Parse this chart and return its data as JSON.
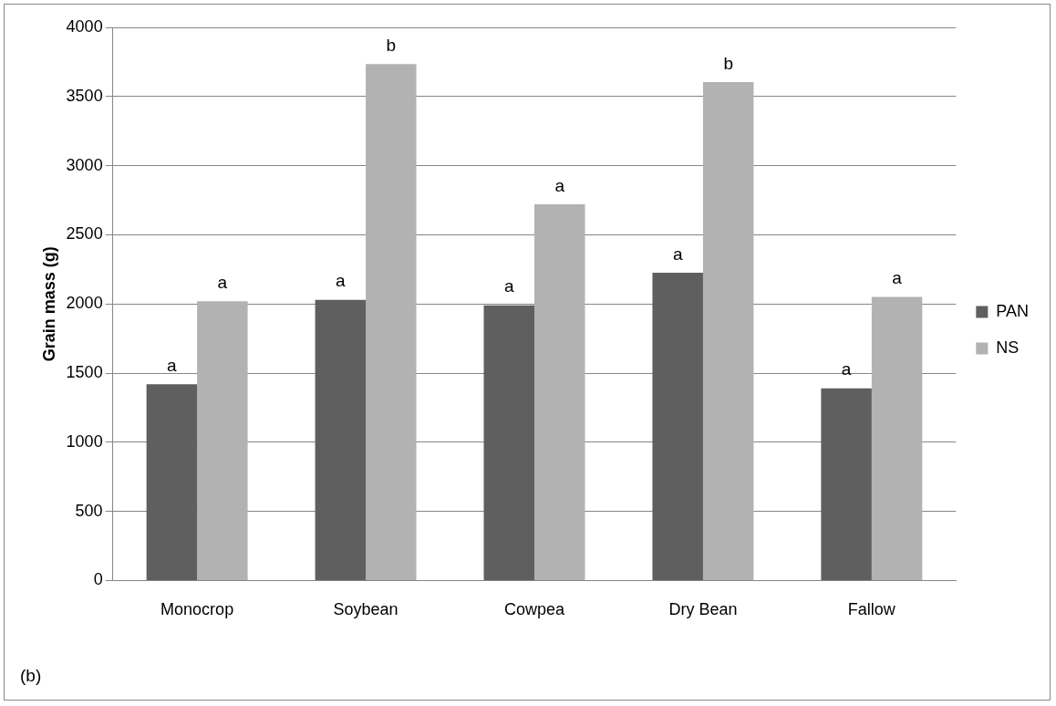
{
  "chart_data": {
    "type": "bar",
    "ylabel": "Grain mass (g)",
    "categories": [
      "Monocrop",
      "Soybean",
      "Cowpea",
      "Dry Bean",
      "Fallow"
    ],
    "series": [
      {
        "name": "PAN",
        "color": "#5f5f5f",
        "values": [
          1420,
          2030,
          1990,
          2225,
          1390
        ]
      },
      {
        "name": "NS",
        "color": "#b2b2b2",
        "values": [
          2020,
          3735,
          2720,
          3605,
          2050
        ]
      }
    ],
    "ylim": [
      0,
      4000
    ],
    "yticks": [
      0,
      500,
      1000,
      1500,
      2000,
      2500,
      3000,
      3500,
      4000
    ],
    "grid": "y",
    "legend": "right",
    "annotations": [
      {
        "text": "a",
        "x": "Monocrop",
        "y": 1420
      },
      {
        "text": "a",
        "x": "Monocrop",
        "y": 2020
      },
      {
        "text": "a",
        "x": "Soybean",
        "y": 2030
      },
      {
        "text": "b",
        "x": "Soybean",
        "y": 3735
      },
      {
        "text": "a",
        "x": "Cowpea",
        "y": 1990
      },
      {
        "text": "a",
        "x": "Cowpea",
        "y": 2720
      },
      {
        "text": "a",
        "x": "Dry Bean",
        "y": 2225
      },
      {
        "text": "b",
        "x": "Dry Bean",
        "y": 3605
      },
      {
        "text": "a",
        "x": "Fallow",
        "y": 1390
      },
      {
        "text": "a",
        "x": "Fallow",
        "y": 2050
      },
      "(b)"
    ]
  }
}
